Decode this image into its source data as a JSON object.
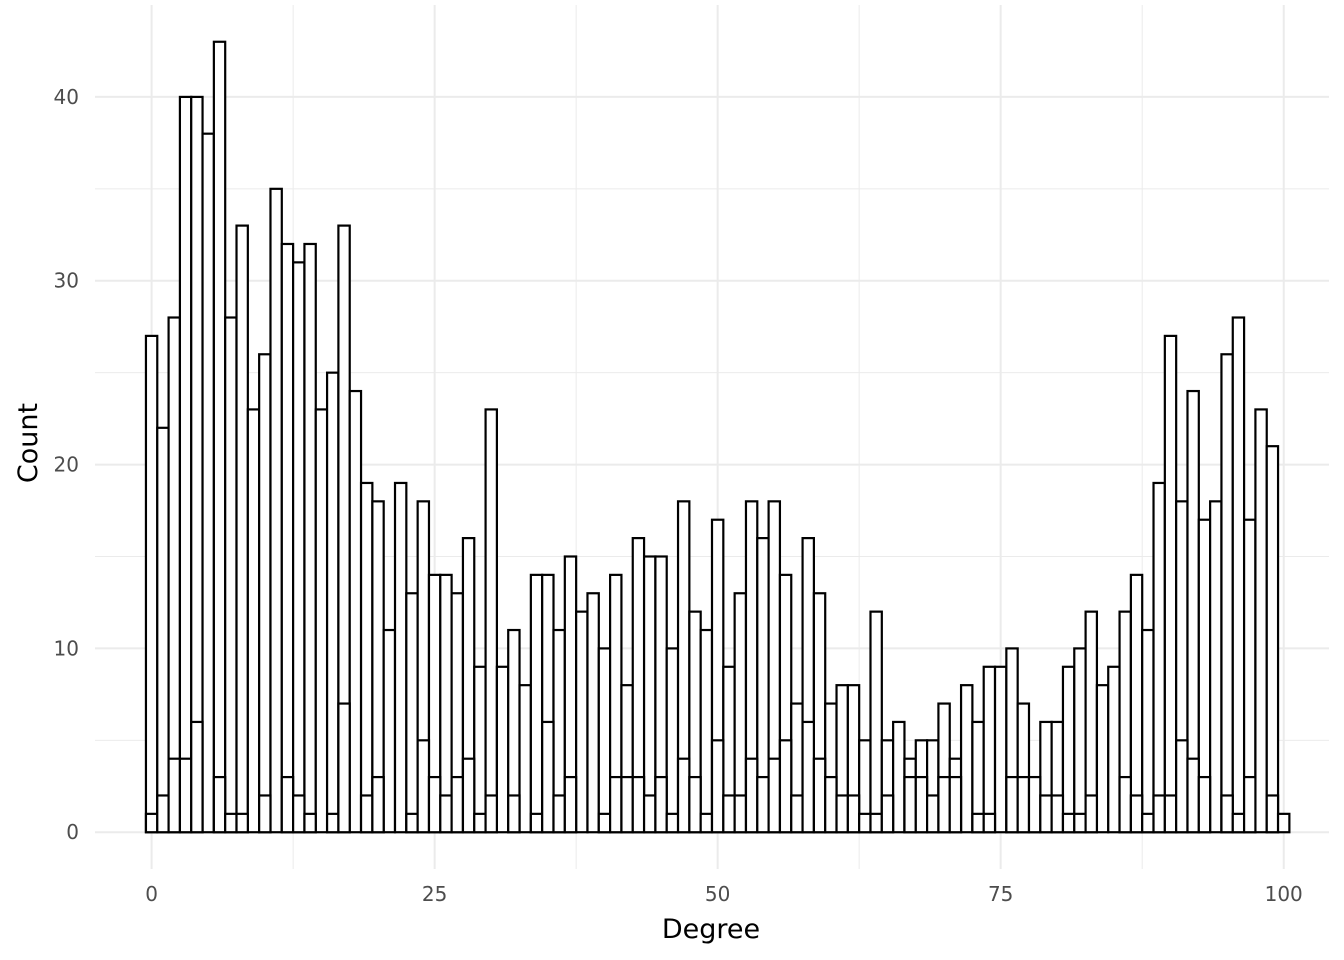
{
  "chart_data": {
    "type": "bar",
    "title": "",
    "xlabel": "Degree",
    "ylabel": "Count",
    "xlim": [
      -5,
      104
    ],
    "ylim": [
      -2,
      45
    ],
    "grid": true,
    "x_ticks": [
      "0",
      "25",
      "50",
      "75",
      "100"
    ],
    "x_tick_values": [
      0,
      25,
      50,
      75,
      100
    ],
    "y_ticks": [
      "0",
      "10",
      "20",
      "30",
      "40"
    ],
    "y_tick_values": [
      0,
      10,
      20,
      30,
      40
    ],
    "bar_fill": "#ffffff",
    "bar_stroke": "#000000",
    "bin_start": -0.5,
    "bin_width": 1,
    "series": [
      {
        "values": [
          27,
          22,
          28,
          40,
          40,
          38,
          43,
          28,
          33,
          23,
          26,
          35,
          32,
          31,
          32,
          23,
          25,
          33,
          24,
          19,
          18,
          11,
          19,
          13,
          18,
          14,
          14,
          13,
          16,
          9,
          23,
          9,
          11,
          8,
          14,
          14,
          11,
          15,
          12,
          13,
          10,
          14,
          8,
          16,
          15,
          15,
          10,
          18,
          12,
          11,
          17,
          9,
          13,
          18,
          16,
          18,
          14,
          7,
          16,
          13,
          7,
          8,
          8,
          5,
          12,
          5,
          6,
          4,
          5,
          5,
          7,
          4,
          8,
          6,
          9,
          9,
          10,
          7,
          3,
          6,
          6,
          9,
          10,
          12,
          8,
          9,
          12,
          14,
          11,
          19,
          27,
          18,
          24,
          17,
          18,
          26,
          28,
          17,
          23,
          21
        ]
      },
      {
        "values": [
          1,
          2,
          4,
          4,
          6,
          0,
          3,
          1,
          1,
          0,
          2,
          0,
          3,
          2,
          1,
          0,
          1,
          7,
          0,
          2,
          3,
          0,
          0,
          1,
          5,
          3,
          2,
          3,
          4,
          1,
          2,
          0,
          2,
          0,
          1,
          6,
          2,
          3,
          0,
          0,
          1,
          3,
          3,
          3,
          2,
          3,
          1,
          4,
          3,
          1,
          5,
          2,
          2,
          4,
          3,
          4,
          5,
          2,
          6,
          4,
          3,
          2,
          2,
          1,
          1,
          2,
          0,
          3,
          3,
          2,
          3,
          3,
          0,
          1,
          1,
          0,
          3,
          3,
          3,
          2,
          2,
          1,
          1,
          2,
          0,
          0,
          3,
          2,
          1,
          2,
          2,
          5,
          4,
          3,
          0,
          2,
          1,
          3,
          0,
          2,
          1
        ]
      }
    ]
  }
}
